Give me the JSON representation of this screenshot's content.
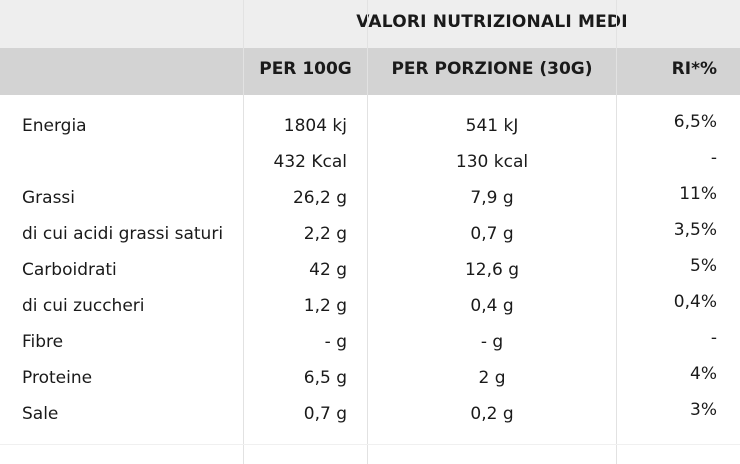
{
  "header": {
    "title": "VALORI NUTRIZIONALI MEDI",
    "col_per100": "PER 100G",
    "col_portion": "PER PORZIONE (30G)",
    "col_ri": "RI*%"
  },
  "rows": [
    {
      "name": "Energia",
      "per100": "1804 kj",
      "portion": "541 kJ",
      "ri": "6,5%"
    },
    {
      "name": "",
      "per100": "432 Kcal",
      "portion": "130 kcal",
      "ri": "-"
    },
    {
      "name": "Grassi",
      "per100": "26,2 g",
      "portion": "7,9 g",
      "ri": "11%"
    },
    {
      "name": "di cui acidi grassi saturi",
      "per100": "2,2 g",
      "portion": "0,7 g",
      "ri": "3,5%"
    },
    {
      "name": "Carboidrati",
      "per100": "42 g",
      "portion": "12,6 g",
      "ri": "5%"
    },
    {
      "name": "di cui zuccheri",
      "per100": "1,2 g",
      "portion": "0,4 g",
      "ri": "0,4%"
    },
    {
      "name": "Fibre",
      "per100": "- g",
      "portion": "- g",
      "ri": "-"
    },
    {
      "name": "Proteine",
      "per100": "6,5 g",
      "portion": "2 g",
      "ri": "4%"
    },
    {
      "name": "Sale",
      "per100": "0,7 g",
      "portion": "0,2 g",
      "ri": "3%"
    }
  ]
}
